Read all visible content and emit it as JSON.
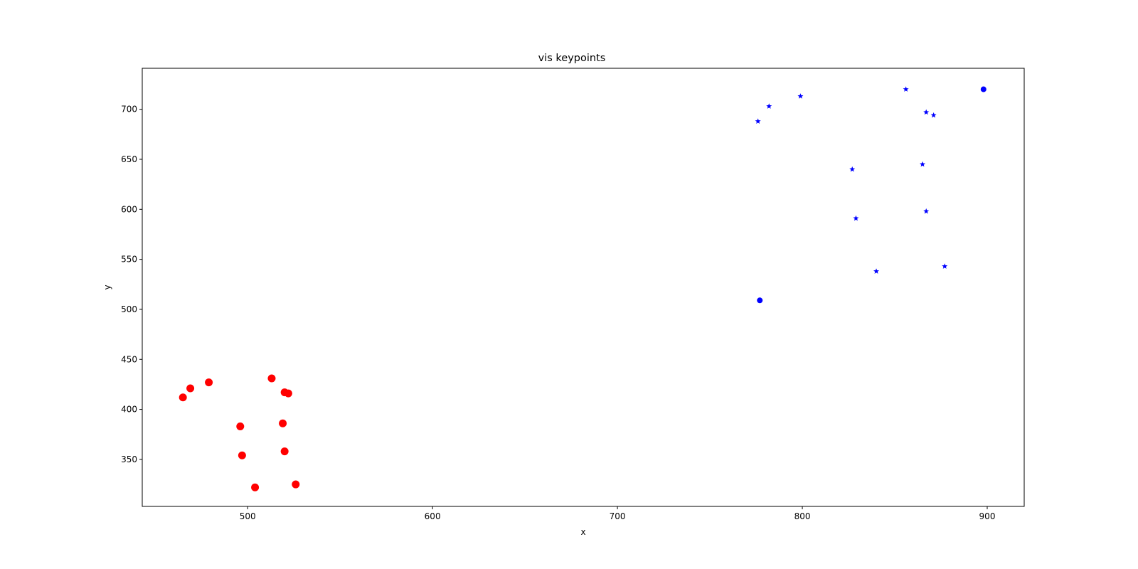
{
  "chart_data": {
    "type": "scatter",
    "title": "vis keypoints",
    "xlabel": "x",
    "ylabel": "y",
    "xlim": [
      443,
      920
    ],
    "ylim": [
      303,
      741
    ],
    "xticks": [
      500,
      600,
      700,
      800,
      900
    ],
    "yticks": [
      350,
      400,
      450,
      500,
      550,
      600,
      650,
      700
    ],
    "grid": false,
    "legend": "none",
    "series": [
      {
        "color": "#ff0000",
        "marker": "circle-large",
        "x": [
          465,
          469,
          479,
          496,
          497,
          504,
          513,
          519,
          520,
          520,
          522,
          526
        ],
        "y": [
          412,
          421,
          427,
          383,
          354,
          322,
          431,
          386,
          417,
          358,
          416,
          325
        ]
      },
      {
        "color": "#0000ff",
        "marker": "star",
        "x": [
          776,
          782,
          799,
          827,
          829,
          840,
          856,
          865,
          867,
          867,
          871,
          877
        ],
        "y": [
          688,
          703,
          713,
          640,
          591,
          538,
          720,
          645,
          697,
          598,
          694,
          543
        ]
      },
      {
        "color": "#0000ff",
        "marker": "circle-small",
        "x": [
          777,
          898
        ],
        "y": [
          509,
          720
        ]
      }
    ]
  }
}
